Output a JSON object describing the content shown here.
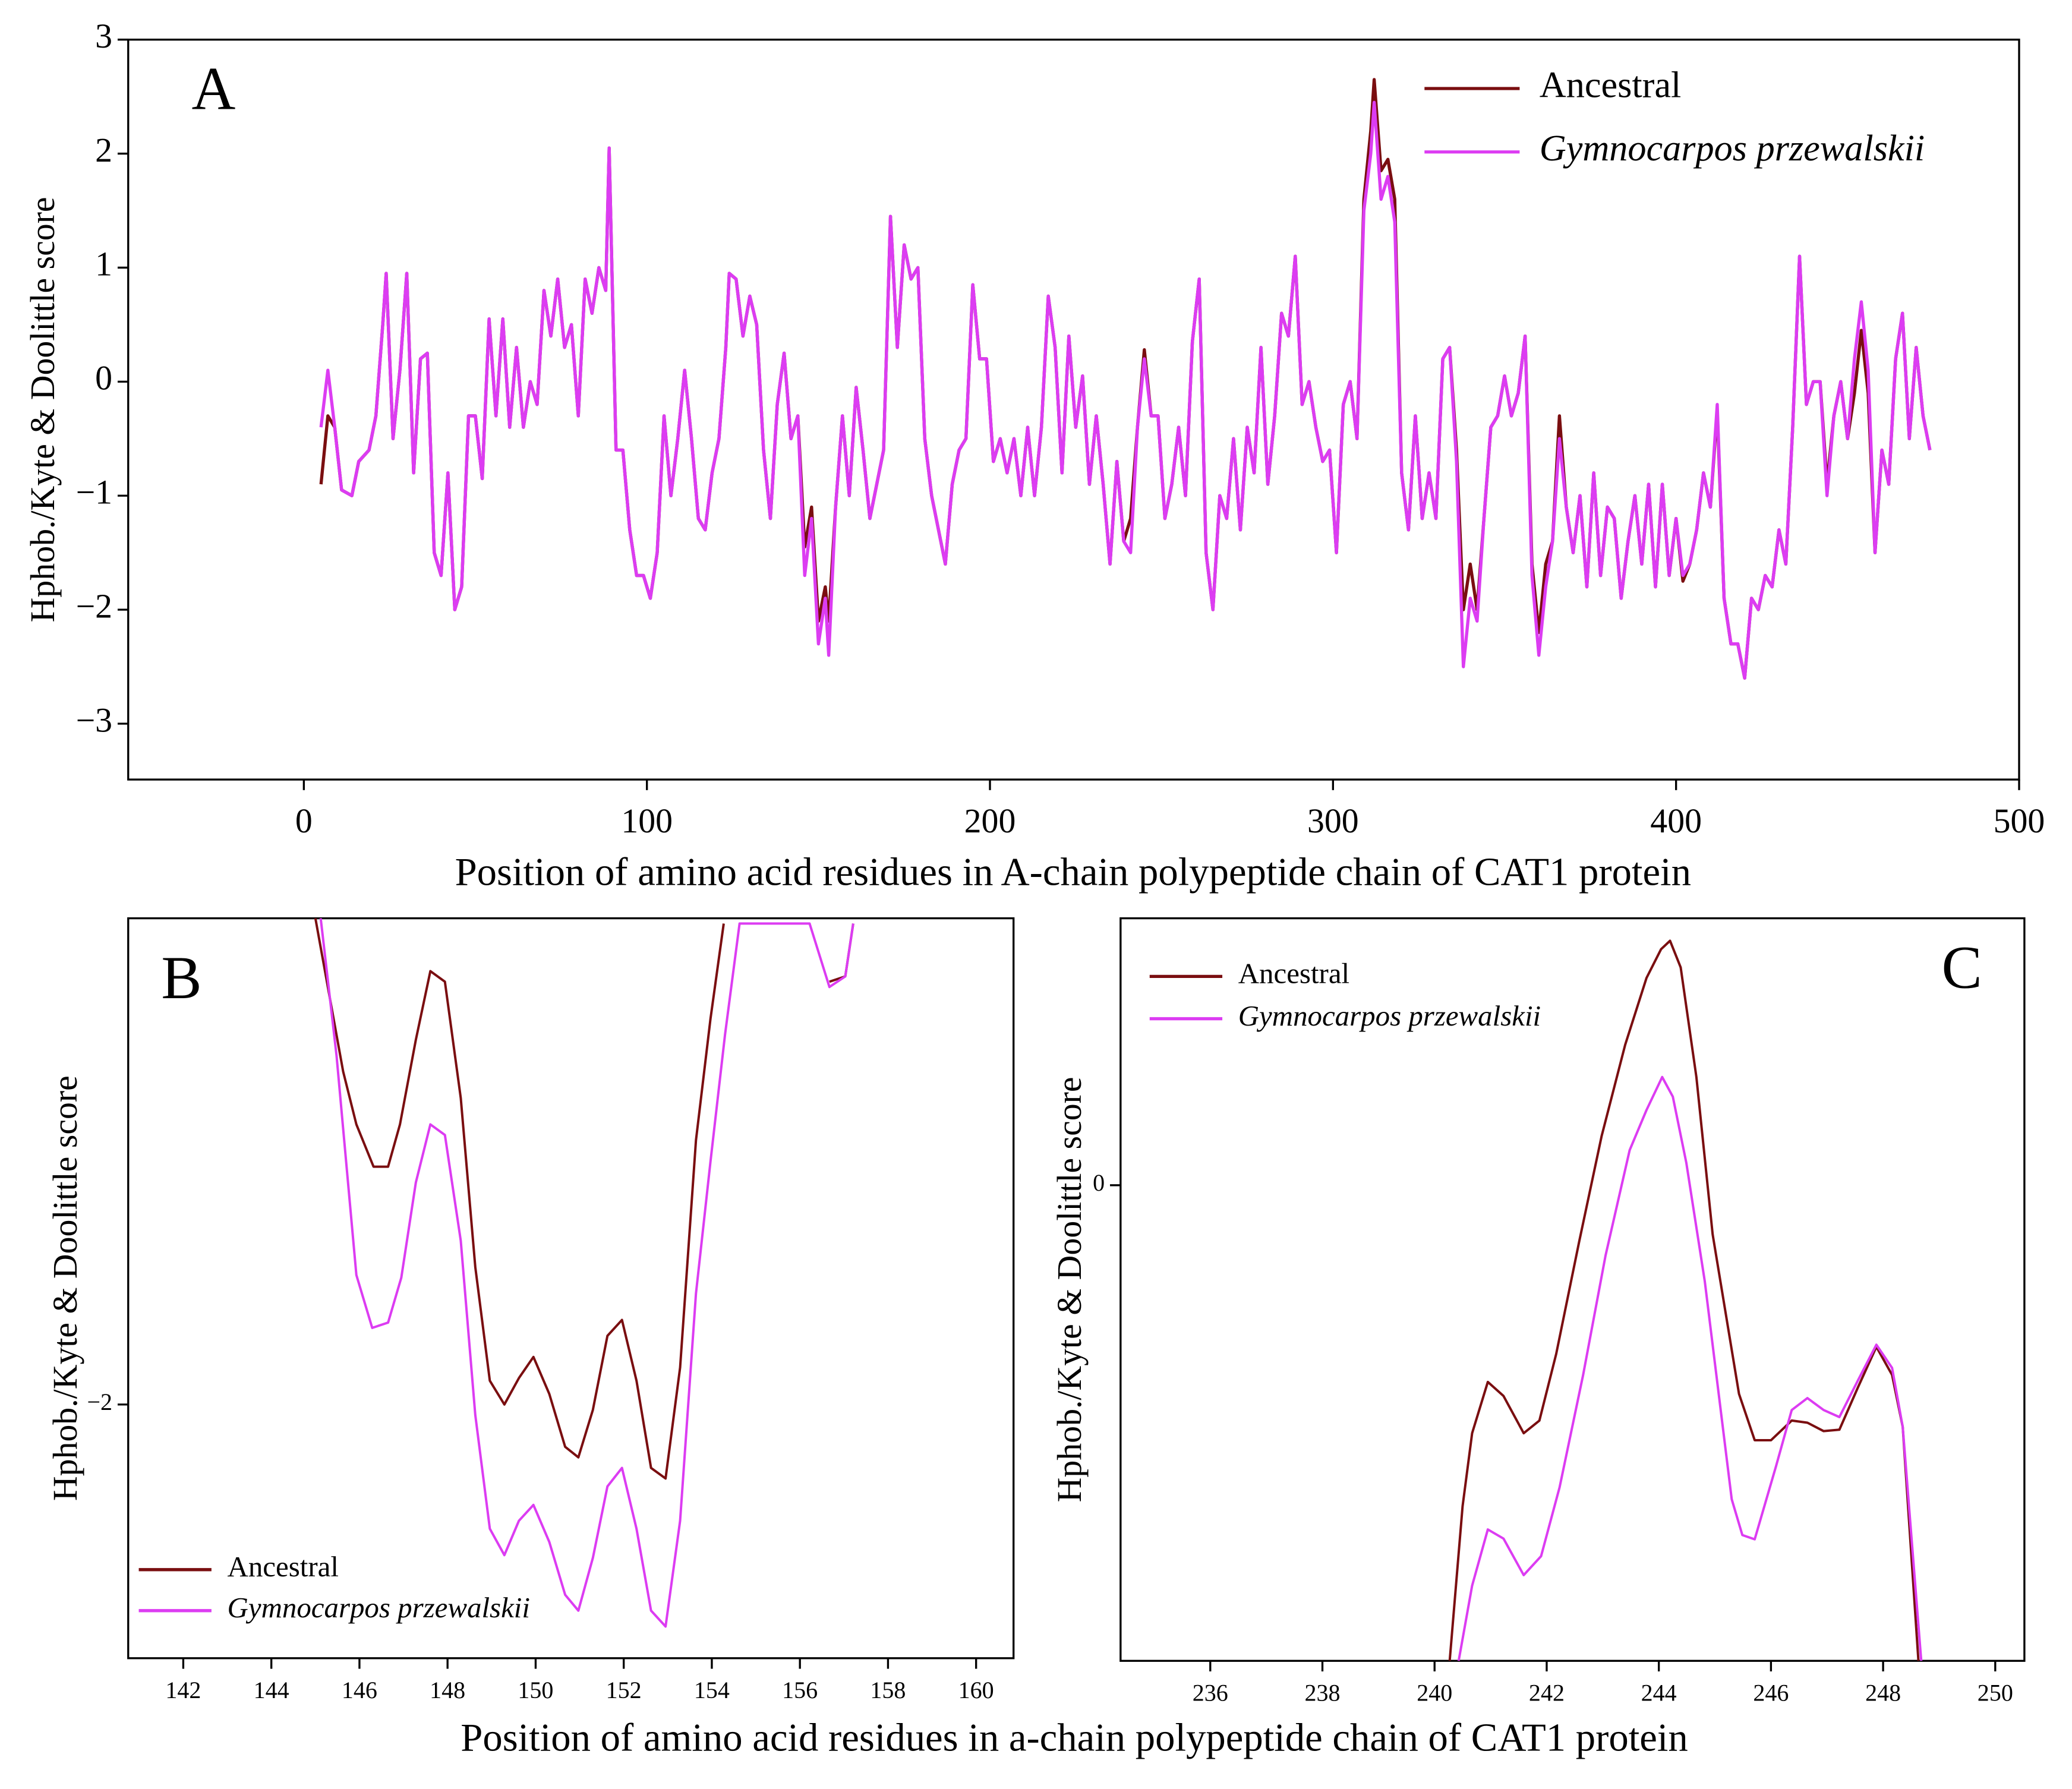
{
  "chart_data": [
    {
      "type": "line",
      "panel_label": "A",
      "xlabel": "Position of amino acid residues in A-chain polypeptide chain of CAT1 protein",
      "ylabel": "Hphob./Kyte & Doolittle score",
      "xlim": [
        -51.2,
        500
      ],
      "xticks": [
        0,
        100,
        200,
        300,
        400,
        500
      ],
      "ylim": [
        -3.49,
        3
      ],
      "yticks": [
        {
          "value": -3,
          "label": "−3"
        },
        {
          "value": -2,
          "label": "−2"
        },
        {
          "value": -1,
          "label": "−1"
        },
        0,
        1,
        2,
        3
      ],
      "legend": "upper right",
      "x": [
        5,
        7,
        9,
        11,
        14,
        16,
        19,
        21,
        23,
        24,
        26,
        28,
        30,
        32,
        34,
        36,
        38,
        40,
        42,
        44,
        46,
        48,
        50,
        52,
        54,
        56,
        58,
        60,
        62,
        64,
        66,
        68,
        70,
        72,
        74,
        76,
        78,
        80,
        82,
        84,
        86,
        88,
        89,
        91,
        93,
        95,
        97,
        99,
        101,
        103,
        105,
        107,
        109,
        111,
        113,
        115,
        117,
        119,
        121,
        123,
        124,
        126,
        128,
        130,
        132,
        134,
        136,
        138,
        140,
        142,
        144,
        146,
        148,
        150,
        152,
        153,
        155,
        157,
        159,
        161,
        163,
        165,
        167,
        169,
        171,
        173,
        175,
        177,
        179,
        181,
        183,
        185,
        187,
        189,
        191,
        193,
        195,
        197,
        199,
        201,
        203,
        205,
        207,
        209,
        211,
        213,
        215,
        217,
        219,
        221,
        223,
        225,
        227,
        229,
        231,
        233,
        235,
        237,
        239,
        241,
        243,
        245,
        247,
        249,
        251,
        253,
        255,
        257,
        259,
        261,
        263,
        265,
        267,
        269,
        271,
        273,
        275,
        277,
        279,
        281,
        283,
        285,
        287,
        289,
        291,
        293,
        295,
        297,
        299,
        301,
        303,
        305,
        307,
        309,
        311,
        312,
        314,
        316,
        318,
        320,
        322,
        324,
        326,
        328,
        330,
        332,
        334,
        336,
        338,
        340,
        342,
        344,
        346,
        348,
        350,
        352,
        354,
        356,
        358,
        360,
        362,
        364,
        366,
        368,
        370,
        372,
        374,
        376,
        378,
        380,
        382,
        384,
        386,
        388,
        390,
        392,
        394,
        396,
        398,
        400,
        402,
        404,
        406,
        408,
        410,
        412,
        414,
        416,
        418,
        420,
        422,
        424,
        426,
        428,
        430,
        432,
        434,
        436,
        438,
        440,
        442,
        444,
        446,
        448,
        450,
        452,
        454,
        456,
        458,
        460,
        462,
        464,
        466,
        468,
        470,
        472,
        474
      ],
      "series": [
        {
          "name": "Ancestral",
          "color": "#7a0e10",
          "values": [
            -0.9,
            -0.3,
            -0.4,
            -0.95,
            -1.0,
            -0.7,
            -0.6,
            -0.3,
            0.5,
            0.95,
            -0.5,
            0.1,
            0.95,
            -0.8,
            0.2,
            0.25,
            -1.5,
            -1.7,
            -0.8,
            -2.0,
            -1.8,
            -0.3,
            -0.3,
            -0.85,
            0.55,
            -0.3,
            0.55,
            -0.4,
            0.3,
            -0.4,
            0.0,
            -0.2,
            0.8,
            0.4,
            0.9,
            0.3,
            0.5,
            -0.3,
            0.9,
            0.6,
            1.0,
            0.8,
            2.05,
            -0.6,
            -0.6,
            -1.3,
            -1.7,
            -1.7,
            -1.9,
            -1.5,
            -0.3,
            -1.0,
            -0.5,
            0.1,
            -0.5,
            -1.2,
            -1.3,
            -0.8,
            -0.5,
            0.3,
            0.95,
            0.9,
            0.4,
            0.75,
            0.5,
            -0.6,
            -1.2,
            -0.2,
            0.25,
            -0.5,
            -0.3,
            -1.45,
            -1.1,
            -2.1,
            -1.8,
            -2.1,
            -1.1,
            -0.3,
            -1.0,
            -0.05,
            -0.6,
            -1.2,
            -0.9,
            -0.6,
            1.45,
            0.3,
            1.2,
            0.9,
            1.0,
            -0.5,
            -1.0,
            -1.3,
            -1.6,
            -0.9,
            -0.6,
            -0.5,
            0.85,
            0.2,
            0.2,
            -0.7,
            -0.5,
            -0.8,
            -0.5,
            -1.0,
            -0.4,
            -1.0,
            -0.4,
            0.75,
            0.3,
            -0.8,
            0.4,
            -0.4,
            0.05,
            -0.9,
            -0.3,
            -0.9,
            -1.6,
            -0.7,
            -1.4,
            -1.2,
            -0.4,
            0.28,
            -0.3,
            -0.3,
            -1.2,
            -0.9,
            -0.4,
            -1.0,
            0.35,
            0.9,
            -1.5,
            -2.0,
            -1.0,
            -1.2,
            -0.5,
            -1.3,
            -0.4,
            -0.8,
            0.3,
            -0.9,
            -0.3,
            0.6,
            0.4,
            1.1,
            -0.2,
            0.0,
            -0.4,
            -0.7,
            -0.6,
            -1.5,
            -0.2,
            0.0,
            -0.5,
            1.6,
            2.2,
            2.65,
            1.85,
            1.95,
            1.6,
            -0.8,
            -1.3,
            -0.3,
            -1.2,
            -0.8,
            -1.2,
            0.2,
            0.3,
            -0.6,
            -2.0,
            -1.6,
            -2.0,
            -1.2,
            -0.4,
            -0.3,
            0.05,
            -0.3,
            -0.1,
            0.4,
            -1.6,
            -2.2,
            -1.6,
            -1.4,
            -0.3,
            -1.1,
            -1.5,
            -1.0,
            -1.8,
            -0.8,
            -1.7,
            -1.1,
            -1.2,
            -1.9,
            -1.4,
            -1.0,
            -1.6,
            -0.9,
            -1.8,
            -0.9,
            -1.7,
            -1.2,
            -1.75,
            -1.6,
            -1.3,
            -0.8,
            -1.1,
            -0.25,
            -1.9,
            -2.3,
            -2.3,
            -2.6,
            -1.9,
            -2.0,
            -1.7,
            -1.8,
            -1.3,
            -1.6,
            -0.4,
            1.1,
            -0.2,
            0.0,
            0.0,
            -0.9,
            -0.3,
            0.0,
            -0.5,
            -0.1,
            0.45,
            -0.1,
            -1.5,
            -0.6,
            -0.9,
            0.2,
            0.6,
            -0.5,
            0.3,
            -0.3,
            -0.6
          ]
        },
        {
          "name": "Gymnocarpos przewalskii",
          "color": "#dc3cf2",
          "values": [
            -0.4,
            0.1,
            -0.4,
            -0.95,
            -1.0,
            -0.7,
            -0.6,
            -0.3,
            0.5,
            0.95,
            -0.5,
            0.1,
            0.95,
            -0.8,
            0.2,
            0.25,
            -1.5,
            -1.7,
            -0.8,
            -2.0,
            -1.8,
            -0.3,
            -0.3,
            -0.85,
            0.55,
            -0.3,
            0.55,
            -0.4,
            0.3,
            -0.4,
            0.0,
            -0.2,
            0.8,
            0.4,
            0.9,
            0.3,
            0.5,
            -0.3,
            0.9,
            0.6,
            1.0,
            0.8,
            2.05,
            -0.6,
            -0.6,
            -1.3,
            -1.7,
            -1.7,
            -1.9,
            -1.5,
            -0.3,
            -1.0,
            -0.5,
            0.1,
            -0.5,
            -1.2,
            -1.3,
            -0.8,
            -0.5,
            0.3,
            0.95,
            0.9,
            0.4,
            0.75,
            0.5,
            -0.6,
            -1.2,
            -0.2,
            0.25,
            -0.5,
            -0.3,
            -1.7,
            -1.2,
            -2.3,
            -1.9,
            -2.4,
            -1.1,
            -0.3,
            -1.0,
            -0.05,
            -0.6,
            -1.2,
            -0.9,
            -0.6,
            1.45,
            0.3,
            1.2,
            0.9,
            1.0,
            -0.5,
            -1.0,
            -1.3,
            -1.6,
            -0.9,
            -0.6,
            -0.5,
            0.85,
            0.2,
            0.2,
            -0.7,
            -0.5,
            -0.8,
            -0.5,
            -1.0,
            -0.4,
            -1.0,
            -0.4,
            0.75,
            0.3,
            -0.8,
            0.4,
            -0.4,
            0.05,
            -0.9,
            -0.3,
            -0.9,
            -1.6,
            -0.7,
            -1.4,
            -1.5,
            -0.4,
            0.2,
            -0.3,
            -0.3,
            -1.2,
            -0.9,
            -0.4,
            -1.0,
            0.35,
            0.9,
            -1.5,
            -2.0,
            -1.0,
            -1.2,
            -0.5,
            -1.3,
            -0.4,
            -0.8,
            0.3,
            -0.9,
            -0.3,
            0.6,
            0.4,
            1.1,
            -0.2,
            0.0,
            -0.4,
            -0.7,
            -0.6,
            -1.5,
            -0.2,
            0.0,
            -0.5,
            1.5,
            2.0,
            2.45,
            1.6,
            1.8,
            1.4,
            -0.8,
            -1.3,
            -0.3,
            -1.2,
            -0.8,
            -1.2,
            0.2,
            0.3,
            -0.7,
            -2.5,
            -1.9,
            -2.1,
            -1.2,
            -0.4,
            -0.3,
            0.05,
            -0.3,
            -0.1,
            0.4,
            -1.7,
            -2.4,
            -1.8,
            -1.4,
            -0.5,
            -1.1,
            -1.5,
            -1.0,
            -1.8,
            -0.8,
            -1.7,
            -1.1,
            -1.2,
            -1.9,
            -1.4,
            -1.0,
            -1.6,
            -0.9,
            -1.8,
            -0.9,
            -1.7,
            -1.2,
            -1.7,
            -1.6,
            -1.3,
            -0.8,
            -1.1,
            -0.2,
            -1.9,
            -2.3,
            -2.3,
            -2.6,
            -1.9,
            -2.0,
            -1.7,
            -1.8,
            -1.3,
            -1.6,
            -0.4,
            1.1,
            -0.2,
            0.0,
            0.0,
            -1.0,
            -0.3,
            0.0,
            -0.5,
            0.2,
            0.7,
            0.1,
            -1.5,
            -0.6,
            -0.9,
            0.2,
            0.6,
            -0.5,
            0.3,
            -0.3,
            -0.6
          ]
        }
      ]
    },
    {
      "type": "line",
      "panel_label": "B",
      "xlabel": "Position of amino acid residues in a-chain polypeptide chain of CAT1 protein",
      "ylabel": "Hphob./Kyte & Doolittle score",
      "xlim": [
        140.75,
        160.85
      ],
      "xticks": [
        142,
        144,
        146,
        148,
        150,
        152,
        154,
        156,
        158,
        160
      ],
      "ylim": [
        -2.48,
        -1.08
      ],
      "yticks": [
        {
          "value": -2,
          "label": "−2"
        }
      ],
      "legend": "lower left",
      "series": [
        {
          "name": "Ancestral",
          "color": "#7a0e10",
          "x": [
            145.0,
            145.63,
            145.93,
            146.32,
            146.65,
            146.92,
            147.28,
            147.61,
            147.94,
            148.3,
            148.63,
            148.96,
            149.29,
            149.62,
            149.95,
            150.31,
            150.67,
            150.97,
            151.3,
            151.63,
            151.96,
            152.29,
            152.62,
            152.95,
            153.28,
            153.64,
            153.97,
            154.27,
            156.22,
            156.67,
            157.03,
            157.21
          ],
          "values": [
            -1.08,
            -1.37,
            -1.47,
            -1.55,
            -1.55,
            -1.47,
            -1.31,
            -1.18,
            -1.2,
            -1.42,
            -1.74,
            -1.955,
            -2.0,
            -1.95,
            -1.91,
            -1.98,
            -2.08,
            -2.1,
            -2.01,
            -1.87,
            -1.84,
            -1.955,
            -2.12,
            -2.14,
            -1.93,
            -1.5,
            -1.27,
            -1.09,
            null,
            -1.2,
            -1.19,
            -1.09
          ]
        },
        {
          "name": "Gymnocarpos przewalskii",
          "color": "#dc3cf2",
          "x": [
            145.12,
            145.48,
            145.93,
            146.29,
            146.65,
            146.95,
            147.28,
            147.61,
            147.94,
            148.3,
            148.63,
            148.96,
            149.29,
            149.62,
            149.95,
            150.31,
            150.67,
            150.97,
            151.3,
            151.63,
            151.96,
            152.29,
            152.62,
            152.95,
            153.28,
            153.64,
            153.97,
            154.3,
            154.63,
            156.22,
            156.67,
            157.03,
            157.21
          ],
          "values": [
            -1.08,
            -1.34,
            -1.755,
            -1.855,
            -1.845,
            -1.76,
            -1.58,
            -1.47,
            -1.49,
            -1.69,
            -2.02,
            -2.235,
            -2.285,
            -2.22,
            -2.19,
            -2.26,
            -2.36,
            -2.39,
            -2.29,
            -2.155,
            -2.12,
            -2.235,
            -2.39,
            -2.42,
            -2.22,
            -1.79,
            -1.54,
            -1.3,
            -1.09,
            -1.09,
            -1.21,
            -1.19,
            -1.09
          ]
        }
      ]
    },
    {
      "type": "line",
      "panel_label": "C",
      "ylabel": "Hphob./Kyte & Doolittle score",
      "xlim": [
        234.4,
        250.52
      ],
      "xticks": [
        236,
        238,
        240,
        242,
        244,
        246,
        248,
        250
      ],
      "ylim": [
        -0.677,
        0.38
      ],
      "yticks": [
        0
      ],
      "legend": "upper left",
      "series": [
        {
          "name": "Ancestral",
          "color": "#7a0e10",
          "x": [
            240.27,
            240.5,
            240.67,
            240.95,
            241.23,
            241.59,
            241.87,
            242.17,
            242.58,
            242.98,
            243.4,
            243.78,
            244.04,
            244.2,
            244.39,
            244.67,
            244.96,
            245.43,
            245.71,
            246.0,
            246.37,
            246.65,
            246.94,
            247.22,
            247.55,
            247.88,
            248.16,
            248.35,
            248.63
          ],
          "values": [
            -0.677,
            -0.457,
            -0.353,
            -0.28,
            -0.3,
            -0.353,
            -0.335,
            -0.24,
            -0.08,
            0.07,
            0.2,
            0.295,
            0.336,
            0.348,
            0.31,
            0.154,
            -0.07,
            -0.297,
            -0.363,
            -0.363,
            -0.335,
            -0.338,
            -0.35,
            -0.348,
            -0.288,
            -0.23,
            -0.27,
            -0.344,
            -0.677
          ]
        },
        {
          "name": "Gymnocarpos przewalskii",
          "color": "#dc3cf2",
          "x": [
            240.43,
            240.67,
            240.95,
            241.23,
            241.59,
            241.9,
            242.23,
            242.65,
            243.05,
            243.48,
            243.78,
            244.06,
            244.25,
            244.49,
            244.82,
            245.3,
            245.49,
            245.71,
            246.09,
            246.37,
            246.65,
            246.94,
            247.22,
            247.55,
            247.88,
            248.16,
            248.35,
            248.68
          ],
          "values": [
            -0.677,
            -0.57,
            -0.49,
            -0.503,
            -0.555,
            -0.528,
            -0.43,
            -0.27,
            -0.1,
            0.05,
            0.107,
            0.154,
            0.126,
            0.032,
            -0.137,
            -0.447,
            -0.498,
            -0.504,
            -0.4,
            -0.32,
            -0.303,
            -0.32,
            -0.33,
            -0.278,
            -0.227,
            -0.26,
            -0.344,
            -0.677
          ]
        }
      ]
    }
  ]
}
